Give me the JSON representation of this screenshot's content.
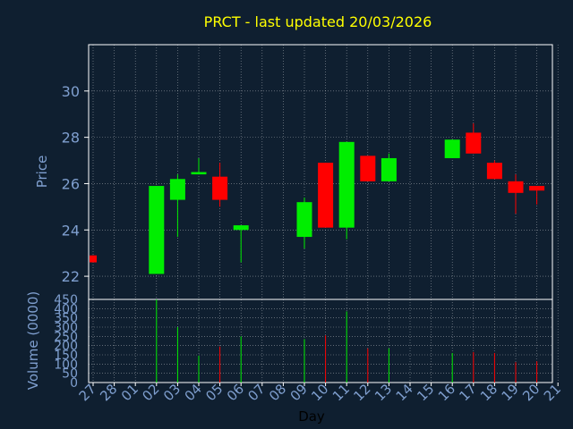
{
  "chart_data": {
    "type": "candlestick",
    "title": "PRCT - last updated 20/03/2026",
    "xlabel": "Day",
    "ylabel_price": "Price",
    "ylabel_volume": "Volume (0000)",
    "x_ticks": [
      "27",
      "28",
      "01",
      "02",
      "03",
      "04",
      "05",
      "06",
      "07",
      "08",
      "09",
      "10",
      "11",
      "12",
      "13",
      "14",
      "15",
      "16",
      "17",
      "18",
      "19",
      "20",
      "21"
    ],
    "price_ylim": [
      21,
      32
    ],
    "price_ticks": [
      22,
      24,
      26,
      28,
      30
    ],
    "volume_ylim": [
      0,
      450
    ],
    "volume_ticks": [
      0,
      50,
      100,
      150,
      200,
      250,
      300,
      350,
      400,
      450
    ],
    "grid": true,
    "colors": {
      "background": "#0f1f30",
      "plot_background": "#0f1f30",
      "up": "#00ee00",
      "down": "#ff0000",
      "title": "#ffff00",
      "axis_text": "#7f9fcf",
      "grid": "#ffffff"
    },
    "candles": [
      {
        "i": 0,
        "open": 22.9,
        "close": 22.6,
        "high": 22.9,
        "low": 22.6,
        "volume": 0
      },
      {
        "i": 3,
        "open": 22.1,
        "close": 25.9,
        "high": 25.9,
        "low": 22.1,
        "volume": 450
      },
      {
        "i": 4,
        "open": 25.3,
        "close": 26.2,
        "high": 26.4,
        "low": 23.7,
        "volume": 300
      },
      {
        "i": 5,
        "open": 26.4,
        "close": 26.5,
        "high": 27.1,
        "low": 26.4,
        "volume": 145
      },
      {
        "i": 6,
        "open": 26.3,
        "close": 25.3,
        "high": 26.9,
        "low": 25.0,
        "volume": 195
      },
      {
        "i": 7,
        "open": 24.0,
        "close": 24.2,
        "high": 24.2,
        "low": 22.6,
        "volume": 250
      },
      {
        "i": 10,
        "open": 23.7,
        "close": 25.2,
        "high": 25.4,
        "low": 23.2,
        "volume": 235
      },
      {
        "i": 11,
        "open": 26.9,
        "close": 24.1,
        "high": 26.9,
        "low": 24.1,
        "volume": 255
      },
      {
        "i": 12,
        "open": 24.1,
        "close": 27.8,
        "high": 27.8,
        "low": 23.6,
        "volume": 385
      },
      {
        "i": 13,
        "open": 27.2,
        "close": 26.1,
        "high": 27.2,
        "low": 26.1,
        "volume": 185
      },
      {
        "i": 14,
        "open": 26.1,
        "close": 27.1,
        "high": 27.3,
        "low": 26.1,
        "volume": 185
      },
      {
        "i": 17,
        "open": 27.1,
        "close": 27.9,
        "high": 27.9,
        "low": 27.1,
        "volume": 160
      },
      {
        "i": 18,
        "open": 28.2,
        "close": 27.3,
        "high": 28.6,
        "low": 27.3,
        "volume": 165
      },
      {
        "i": 19,
        "open": 26.9,
        "close": 26.2,
        "high": 27.0,
        "low": 26.2,
        "volume": 160
      },
      {
        "i": 20,
        "open": 26.1,
        "close": 25.6,
        "high": 26.4,
        "low": 24.7,
        "volume": 110
      },
      {
        "i": 21,
        "open": 25.9,
        "close": 25.7,
        "high": 25.9,
        "low": 25.1,
        "volume": 115
      }
    ]
  }
}
